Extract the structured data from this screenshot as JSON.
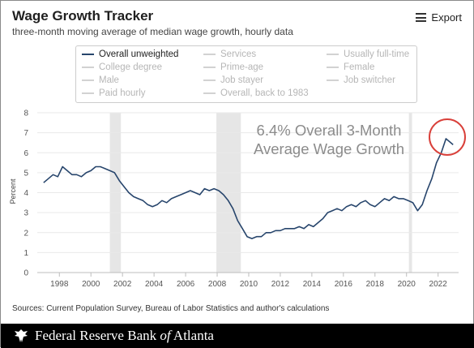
{
  "header": {
    "title": "Wage Growth Tracker",
    "subtitle": "three-month moving average of median wage growth, hourly data",
    "export_label": "Export"
  },
  "legend": {
    "items": [
      {
        "label": "Overall unweighted",
        "active": true
      },
      {
        "label": "Services",
        "active": false
      },
      {
        "label": "Usually full-time",
        "active": false
      },
      {
        "label": "College degree",
        "active": false
      },
      {
        "label": "Prime-age",
        "active": false
      },
      {
        "label": "Female",
        "active": false
      },
      {
        "label": "Male",
        "active": false
      },
      {
        "label": "Job stayer",
        "active": false
      },
      {
        "label": "Job switcher",
        "active": false
      },
      {
        "label": "Paid hourly",
        "active": false
      },
      {
        "label": "Overall, back to 1983",
        "active": false
      }
    ]
  },
  "chart_data": {
    "type": "line",
    "ylabel": "Percent",
    "xlabel": "",
    "ylim": [
      0,
      8
    ],
    "xlim": [
      1996.6,
      2023.3
    ],
    "yticks": [
      0,
      1,
      2,
      3,
      4,
      5,
      6,
      7,
      8
    ],
    "xticks": [
      1998,
      2000,
      2002,
      2004,
      2006,
      2008,
      2010,
      2012,
      2014,
      2016,
      2018,
      2020,
      2022
    ],
    "grid": "horizontal",
    "line_color": "#27456c",
    "recession_color": "#e6e6e6",
    "recessions": [
      [
        2001.2,
        2001.9
      ],
      [
        2007.95,
        2009.5
      ],
      [
        2020.15,
        2020.35
      ]
    ],
    "annotation": {
      "lines": [
        "6.4% Overall 3-Month",
        "Average Wage Growth"
      ],
      "circle_color": "#d9403a"
    },
    "series": [
      {
        "name": "Overall unweighted",
        "x": [
          1997.0,
          1997.3,
          1997.6,
          1997.9,
          1998.2,
          1998.5,
          1998.8,
          1999.1,
          1999.4,
          1999.7,
          2000.0,
          2000.3,
          2000.6,
          2000.9,
          2001.2,
          2001.5,
          2001.8,
          2002.1,
          2002.4,
          2002.7,
          2003.0,
          2003.3,
          2003.6,
          2003.9,
          2004.2,
          2004.5,
          2004.8,
          2005.1,
          2005.4,
          2005.7,
          2006.0,
          2006.3,
          2006.6,
          2006.9,
          2007.2,
          2007.5,
          2007.8,
          2008.1,
          2008.4,
          2008.7,
          2009.0,
          2009.3,
          2009.6,
          2009.9,
          2010.2,
          2010.5,
          2010.8,
          2011.1,
          2011.4,
          2011.7,
          2012.0,
          2012.3,
          2012.6,
          2012.9,
          2013.2,
          2013.5,
          2013.8,
          2014.1,
          2014.4,
          2014.7,
          2015.0,
          2015.3,
          2015.6,
          2015.9,
          2016.2,
          2016.5,
          2016.8,
          2017.1,
          2017.4,
          2017.7,
          2018.0,
          2018.3,
          2018.6,
          2018.9,
          2019.2,
          2019.5,
          2019.8,
          2020.1,
          2020.4,
          2020.7,
          2021.0,
          2021.3,
          2021.6,
          2021.9,
          2022.2,
          2022.5,
          2022.8,
          2022.95
        ],
        "values": [
          4.5,
          4.7,
          4.9,
          4.8,
          5.3,
          5.1,
          4.9,
          4.9,
          4.8,
          5.0,
          5.1,
          5.3,
          5.3,
          5.2,
          5.1,
          5.0,
          4.6,
          4.3,
          4.0,
          3.8,
          3.7,
          3.6,
          3.4,
          3.3,
          3.4,
          3.6,
          3.5,
          3.7,
          3.8,
          3.9,
          4.0,
          4.1,
          4.0,
          3.9,
          4.2,
          4.1,
          4.2,
          4.1,
          3.9,
          3.6,
          3.2,
          2.6,
          2.2,
          1.8,
          1.7,
          1.8,
          1.8,
          2.0,
          2.0,
          2.1,
          2.1,
          2.2,
          2.2,
          2.2,
          2.3,
          2.2,
          2.4,
          2.3,
          2.5,
          2.7,
          3.0,
          3.1,
          3.2,
          3.1,
          3.3,
          3.4,
          3.3,
          3.5,
          3.6,
          3.4,
          3.3,
          3.5,
          3.7,
          3.6,
          3.8,
          3.7,
          3.7,
          3.6,
          3.5,
          3.1,
          3.4,
          4.1,
          4.7,
          5.5,
          6.0,
          6.7,
          6.5,
          6.4
        ]
      }
    ]
  },
  "sources": "Sources: Current Population Survey, Bureau of Labor Statistics and author's calculations",
  "footer": {
    "prefix": "Federal Reserve Bank ",
    "of": "of",
    "suffix": " Atlanta"
  }
}
